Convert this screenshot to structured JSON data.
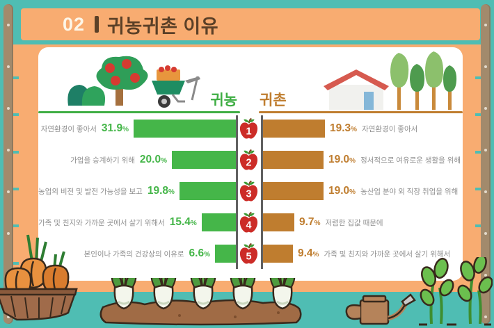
{
  "palette": {
    "background_teal": "#4FBDB3",
    "frame_orange": "#F8AC71",
    "post_brown": "#A28A6C",
    "card_white": "#FFFFFF",
    "title_brown": "#5B4027",
    "left_green": "#45B649",
    "right_brown": "#BF7D2F",
    "label_gray": "#8F8F8F",
    "apple_red": "#CC2C27"
  },
  "header": {
    "number": "02",
    "divider": "|",
    "title": "귀농귀촌 이유"
  },
  "legend": {
    "left_label": "귀농",
    "right_label": "귀촌"
  },
  "chart_data": {
    "type": "bar",
    "layout": "bilateral-horizontal",
    "title": "귀농귀촌 이유",
    "section_number": "02",
    "ranks": [
      1,
      2,
      3,
      4,
      5
    ],
    "rank_marker": "apple-icon",
    "value_suffix": "%",
    "xlim": [
      0,
      32
    ],
    "series": [
      {
        "name": "귀농",
        "side": "left",
        "color": "#45B649",
        "items": [
          {
            "rank": 1,
            "label": "자연환경이 좋아서",
            "value": 31.9
          },
          {
            "rank": 2,
            "label": "가업을 승계하기 위해",
            "value": 20.0
          },
          {
            "rank": 3,
            "label": "농업의 비전 및 발전 가능성을 보고",
            "value": 19.8
          },
          {
            "rank": 4,
            "label": "가족 및 친지와 가까운 곳에서 살기 위해서",
            "value": 15.4
          },
          {
            "rank": 5,
            "label": "본인이나 가족의 건강상의 이유로",
            "value": 6.6
          }
        ]
      },
      {
        "name": "귀촌",
        "side": "right",
        "color": "#BF7D2F",
        "items": [
          {
            "rank": 1,
            "label": "자연환경이 좋아서",
            "value": 19.3
          },
          {
            "rank": 2,
            "label": "정서적으로 여유로운 생활을 위해",
            "value": 19.0
          },
          {
            "rank": 3,
            "label": "농산업 분야 외 직장 취업을 위해",
            "value": 19.0
          },
          {
            "rank": 4,
            "label": "저렴한 집값 때문에",
            "value": 9.7
          },
          {
            "rank": 5,
            "label": "가족 및 친지와 가까운 곳에서 살기 위해서",
            "value": 9.4
          }
        ]
      }
    ]
  },
  "icons": {
    "rank_markers": "apple-icon",
    "top_left": [
      "apple-tree-icon",
      "bush-icon",
      "wheelbarrow-icon"
    ],
    "top_right": [
      "house-icon",
      "trees-icon"
    ],
    "bottom": [
      "onion-basket-icon",
      "radish-field-icon",
      "watering-can-icon",
      "seedling-plants-icon"
    ]
  }
}
